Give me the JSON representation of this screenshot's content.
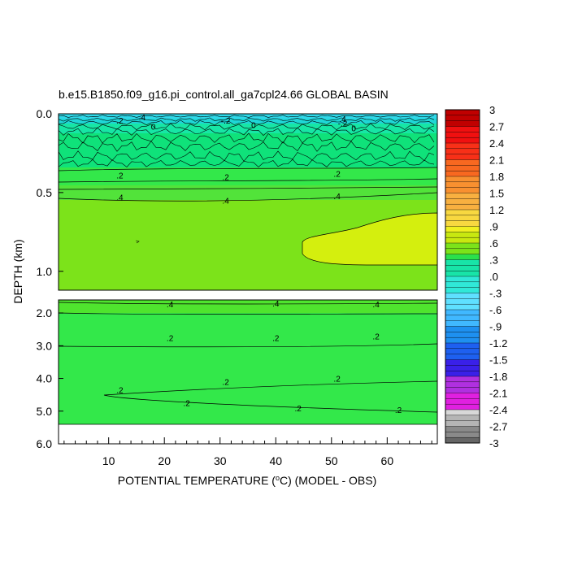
{
  "chart_data": {
    "type": "heatmap",
    "title": "b.e15.B1850.f09_g16.pi_control.all_ga7cpl24.66 GLOBAL BASIN",
    "xlabel_parts": [
      "POTENTIAL TEMPERATURE (",
      "o",
      "C) (MODEL - OBS)"
    ],
    "ylabel": "DEPTH (km)",
    "upper_panel": {
      "ylim": [
        0.0,
        1.12
      ],
      "y_ticks": [
        "0.0",
        "0.5",
        "1.0"
      ],
      "y_tick_values": [
        0.0,
        0.5,
        1.0
      ]
    },
    "lower_panel": {
      "ylim": [
        1.6,
        6.0
      ],
      "y_ticks": [
        "2.0",
        "3.0",
        "4.0",
        "5.0",
        "6.0"
      ],
      "y_tick_values": [
        2.0,
        3.0,
        4.0,
        5.0,
        6.0
      ]
    },
    "x_ticks": [
      "10",
      "20",
      "30",
      "40",
      "50",
      "60"
    ],
    "x_tick_values": [
      10,
      20,
      30,
      40,
      50,
      60
    ],
    "xlim": [
      1,
      69
    ],
    "contour_labels": [
      {
        "text": ".2",
        "x": 12,
        "y": 0.04
      },
      {
        "text": ".4",
        "x": 16,
        "y": 0.02
      },
      {
        "text": "0",
        "x": 18,
        "y": 0.08
      },
      {
        "text": "-.2",
        "x": 31,
        "y": 0.04
      },
      {
        "text": "0",
        "x": 36,
        "y": 0.07
      },
      {
        "text": ".4",
        "x": 52,
        "y": 0.03
      },
      {
        "text": "-.2",
        "x": 52,
        "y": 0.06
      },
      {
        "text": "0",
        "x": 54,
        "y": 0.09
      },
      {
        "text": ".2",
        "x": 12,
        "y": 0.39
      },
      {
        "text": ".2",
        "x": 31,
        "y": 0.4
      },
      {
        "text": ".2",
        "x": 51,
        "y": 0.38
      },
      {
        "text": ".4",
        "x": 12,
        "y": 0.53
      },
      {
        "text": ".4",
        "x": 31,
        "y": 0.55
      },
      {
        "text": ".4",
        "x": 51,
        "y": 0.52
      },
      {
        "text": ".4",
        "x": 21,
        "y": 1.72
      },
      {
        "text": ".4",
        "x": 40,
        "y": 1.7
      },
      {
        "text": ".4",
        "x": 58,
        "y": 1.72
      },
      {
        "text": ".2",
        "x": 21,
        "y": 2.75
      },
      {
        "text": ".2",
        "x": 40,
        "y": 2.75
      },
      {
        "text": ".2",
        "x": 58,
        "y": 2.7
      },
      {
        "text": ".2",
        "x": 12,
        "y": 4.35
      },
      {
        "text": ".2",
        "x": 31,
        "y": 4.1
      },
      {
        "text": ".2",
        "x": 51,
        "y": 4.0
      },
      {
        "text": ".2",
        "x": 24,
        "y": 4.75
      },
      {
        "text": ".2",
        "x": 44,
        "y": 4.9
      },
      {
        "text": ".2",
        "x": 62,
        "y": 4.95
      }
    ],
    "colorbar": {
      "labels": [
        "3",
        "2.7",
        "2.4",
        "2.1",
        "1.8",
        "1.5",
        "1.2",
        ".9",
        ".6",
        ".3",
        ".0",
        "-.3",
        "-.6",
        "-.9",
        "-1.2",
        "-1.5",
        "-1.8",
        "-2.1",
        "-2.4",
        "-2.7",
        "-3"
      ],
      "range": [
        -3,
        3
      ]
    },
    "colors": {
      "fill_0_2": "#33e84a",
      "fill_0_4": "#7ce31a",
      "fill_0_6": "#b2e412",
      "fill_0_7": "#d4ef0e",
      "fill_near_zero": "#17e6a5",
      "fill_neg": "#1fd6d6",
      "fill_pos_low": "#0fe27a"
    }
  }
}
